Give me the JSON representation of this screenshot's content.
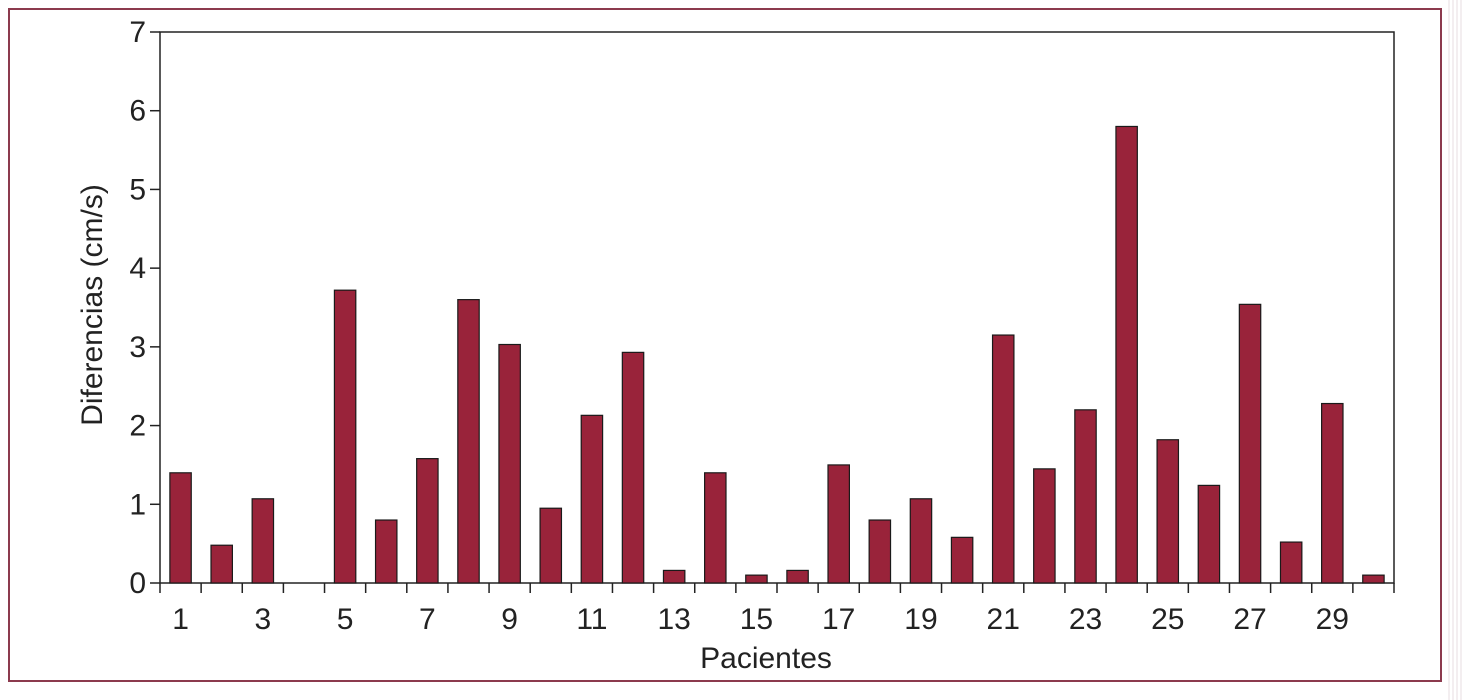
{
  "chart_data": {
    "type": "bar",
    "categories": [
      "1",
      "2",
      "3",
      "4",
      "5",
      "6",
      "7",
      "8",
      "9",
      "10",
      "11",
      "12",
      "13",
      "14",
      "15",
      "16",
      "17",
      "18",
      "19",
      "20",
      "21",
      "22",
      "23",
      "24",
      "25",
      "26",
      "27",
      "28",
      "29",
      "30"
    ],
    "x_tick_labels": [
      "1",
      "3",
      "5",
      "7",
      "9",
      "11",
      "13",
      "15",
      "17",
      "19",
      "21",
      "23",
      "25",
      "27",
      "29"
    ],
    "values": [
      1.4,
      0.48,
      1.07,
      0,
      3.72,
      0.8,
      1.58,
      3.6,
      3.03,
      0.95,
      2.13,
      2.93,
      0.16,
      1.4,
      0.1,
      0.16,
      1.5,
      0.8,
      1.07,
      0.58,
      3.15,
      1.45,
      2.2,
      5.8,
      1.82,
      1.24,
      3.54,
      0.52,
      2.28,
      0.1
    ],
    "xlabel": "Pacientes",
    "ylabel": "Diferencias (cm/s)",
    "ylim": [
      0,
      7
    ],
    "y_ticks": [
      "0",
      "1",
      "2",
      "3",
      "4",
      "5",
      "6",
      "7"
    ],
    "grid": false,
    "colors": {
      "bar": "#99233a",
      "bar_stroke": "#1a1a1a",
      "frame": "#8c3a4e"
    }
  }
}
